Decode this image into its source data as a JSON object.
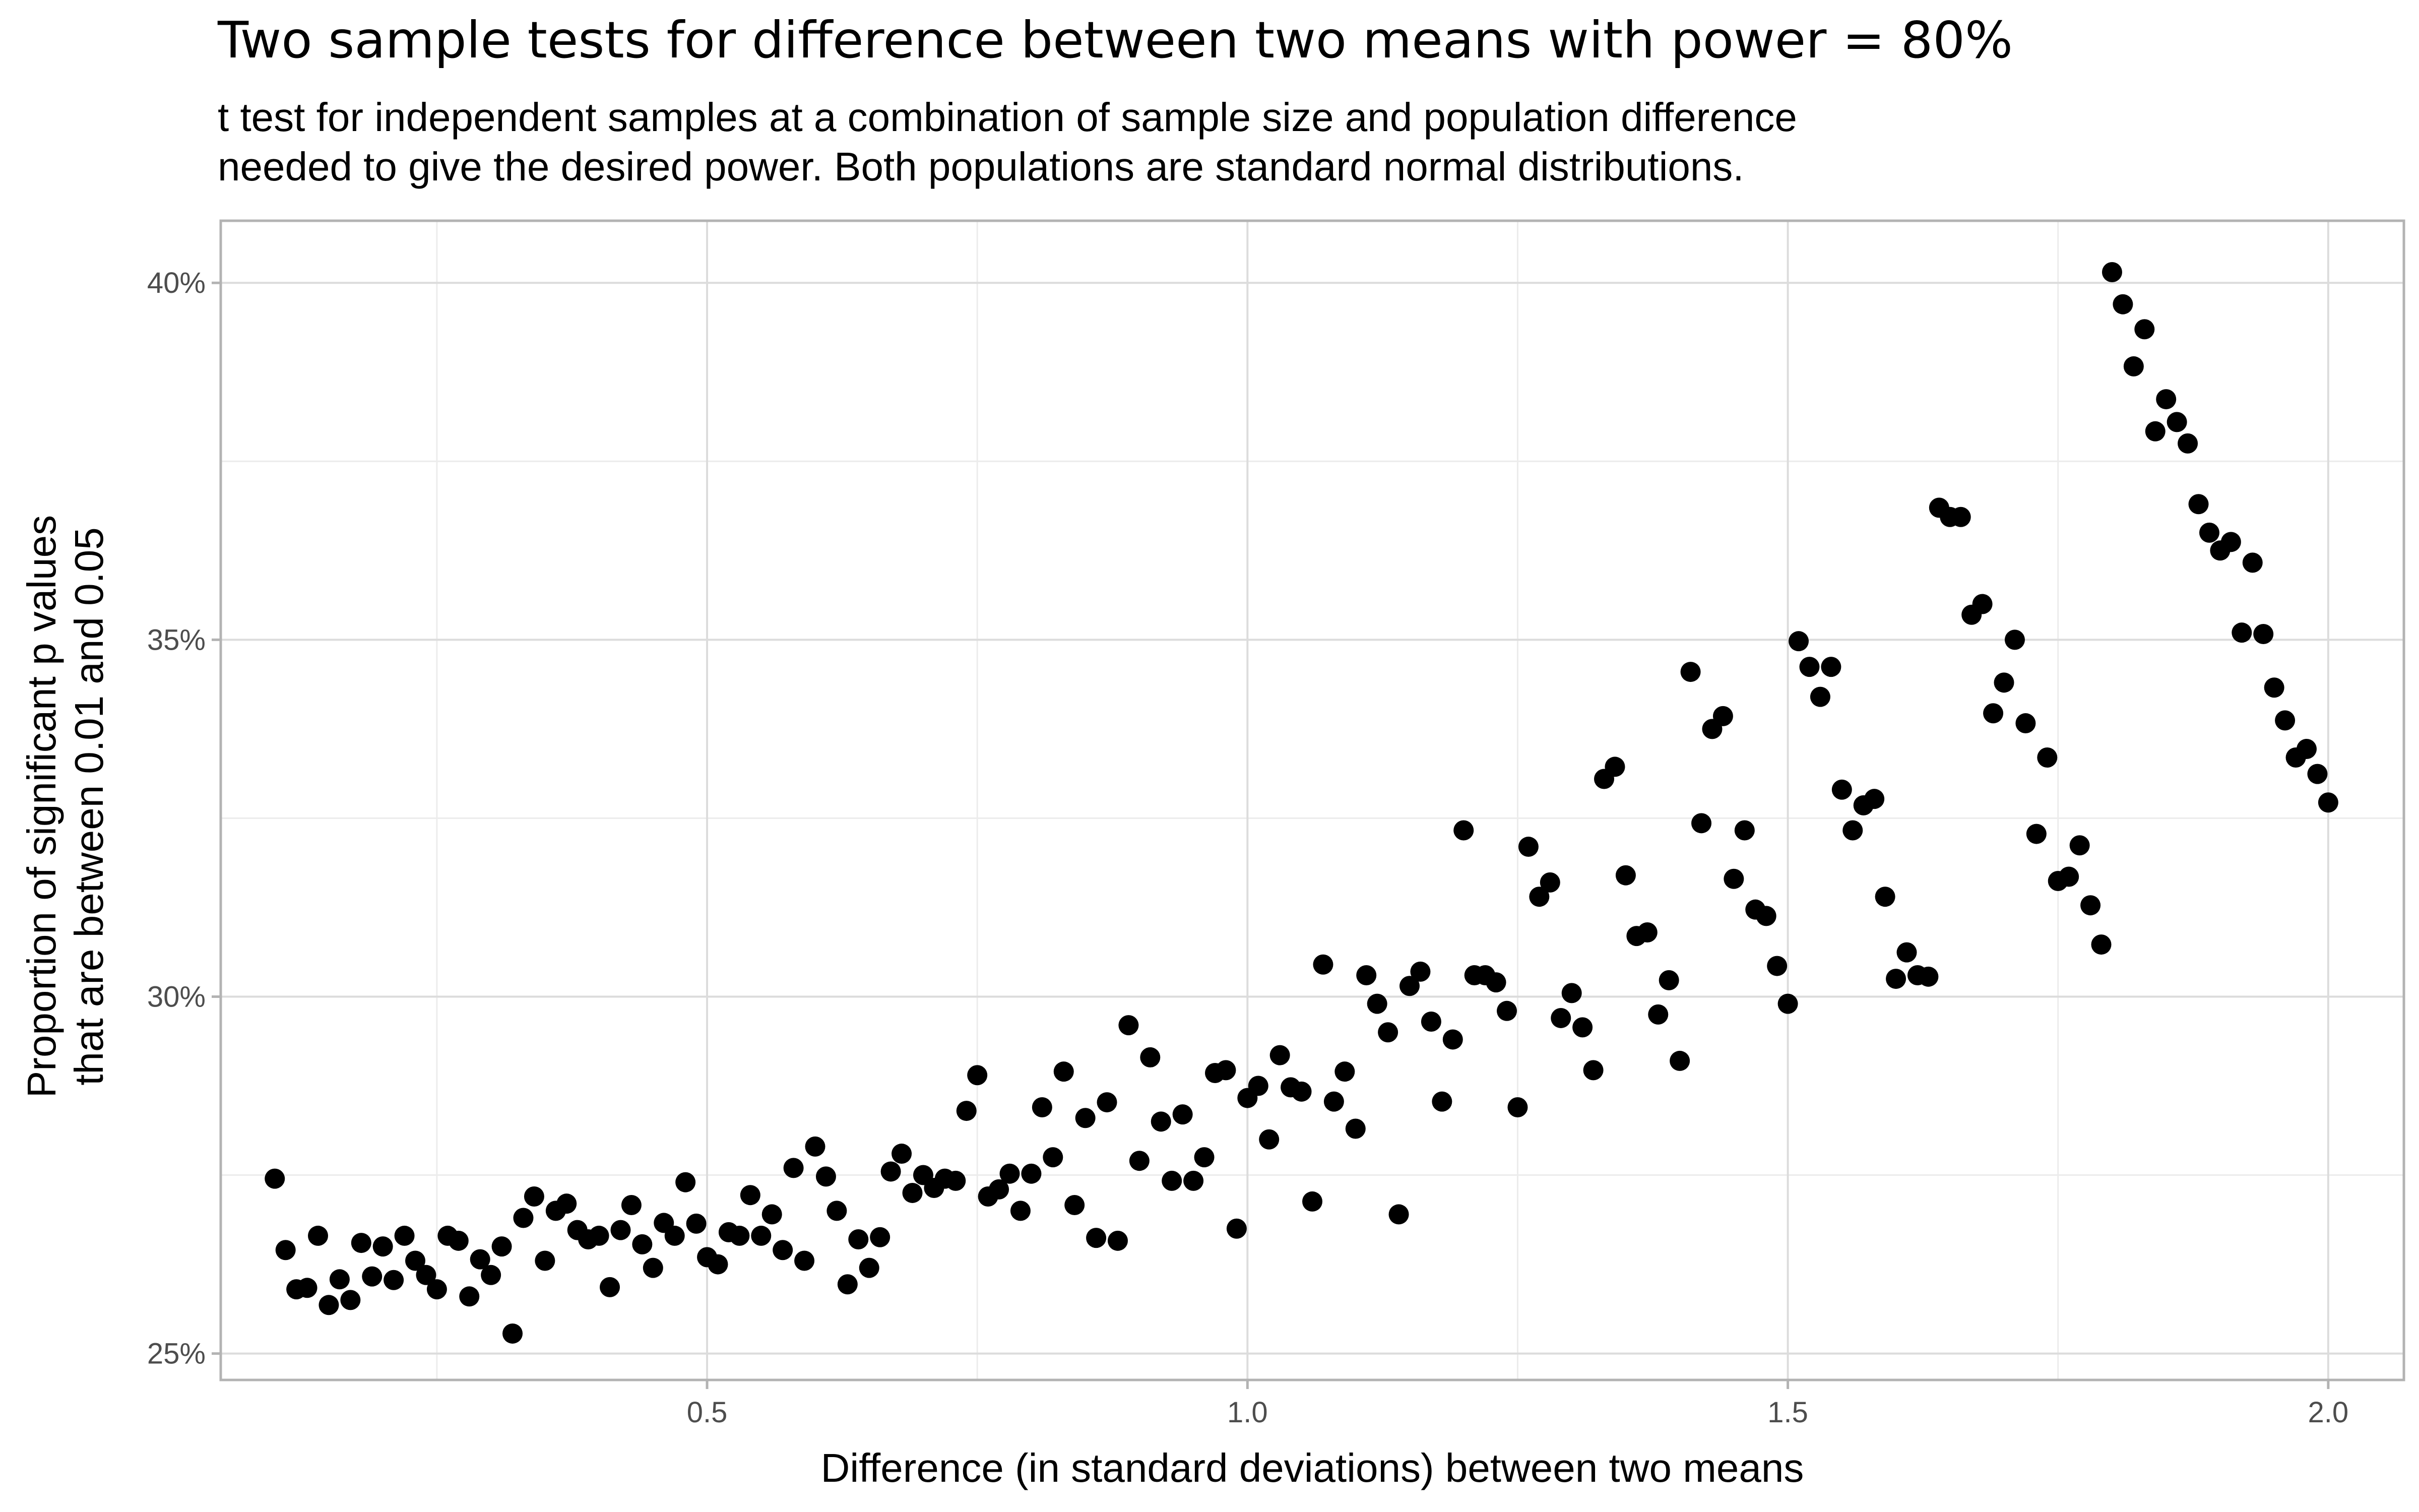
{
  "chart_data": {
    "type": "scatter",
    "title": "Two sample tests for difference between two means with power = 80%",
    "subtitle": [
      "t test for independent samples at a combination of sample size and population difference",
      "needed to give the desired power. Both populations are standard normal distributions."
    ],
    "xlabel": "Difference (in standard deviations) between two means",
    "ylabel": [
      "Proportion of significant p values",
      "that are between 0.01 and 0.05"
    ],
    "xlim": [
      0.05,
      2.07
    ],
    "ylim": [
      0.2463,
      0.4087
    ],
    "x_major_ticks": [
      0.5,
      1.0,
      1.5,
      2.0
    ],
    "x_tick_labels": [
      "0.5",
      "1.0",
      "1.5",
      "2.0"
    ],
    "x_minor_ticks": [
      0.25,
      0.75,
      1.25,
      1.75
    ],
    "y_major_ticks": [
      0.25,
      0.3,
      0.35,
      0.4
    ],
    "y_tick_labels": [
      "25%",
      "30%",
      "35%",
      "40%"
    ],
    "y_minor_ticks": [
      0.275,
      0.325,
      0.375
    ],
    "grid": true,
    "legend": "none",
    "point_color": "#000000",
    "series": [
      {
        "x": [
          0.1,
          0.11,
          0.12,
          0.13,
          0.14,
          0.15,
          0.16,
          0.17,
          0.18,
          0.19,
          0.2,
          0.21,
          0.22,
          0.23,
          0.24,
          0.25,
          0.26,
          0.27,
          0.28,
          0.29,
          0.3,
          0.31,
          0.32,
          0.33,
          0.34,
          0.35,
          0.36,
          0.37,
          0.38,
          0.39,
          0.4,
          0.41,
          0.42,
          0.43,
          0.44,
          0.45,
          0.46,
          0.47,
          0.48,
          0.49,
          0.5,
          0.51,
          0.52,
          0.53,
          0.54,
          0.55,
          0.56,
          0.57,
          0.58,
          0.59,
          0.6,
          0.61,
          0.62,
          0.63,
          0.64,
          0.65,
          0.66,
          0.67,
          0.68,
          0.69,
          0.7,
          0.71,
          0.72,
          0.73,
          0.74,
          0.75,
          0.76,
          0.77,
          0.78,
          0.79,
          0.8,
          0.81,
          0.82,
          0.83,
          0.84,
          0.85,
          0.86,
          0.87,
          0.88,
          0.89,
          0.9,
          0.91,
          0.92,
          0.93,
          0.94,
          0.95,
          0.96,
          0.97,
          0.98,
          0.99,
          1.0,
          1.01,
          1.02,
          1.03,
          1.04,
          1.05,
          1.06,
          1.07,
          1.08,
          1.09,
          1.1,
          1.11,
          1.12,
          1.13,
          1.14,
          1.15,
          1.16,
          1.17,
          1.18,
          1.19,
          1.2,
          1.21,
          1.22,
          1.23,
          1.24,
          1.25,
          1.26,
          1.27,
          1.28,
          1.29,
          1.3,
          1.31,
          1.32,
          1.33,
          1.34,
          1.35,
          1.36,
          1.37,
          1.38,
          1.39,
          1.4,
          1.41,
          1.42,
          1.43,
          1.44,
          1.45,
          1.46,
          1.47,
          1.48,
          1.49,
          1.5,
          1.51,
          1.52,
          1.53,
          1.54,
          1.55,
          1.56,
          1.57,
          1.58,
          1.59,
          1.6,
          1.61,
          1.62,
          1.63,
          1.64,
          1.65,
          1.66,
          1.67,
          1.68,
          1.69,
          1.7,
          1.71,
          1.72,
          1.73,
          1.74,
          1.75,
          1.76,
          1.77,
          1.78,
          1.79,
          1.8,
          1.81,
          1.82,
          1.83,
          1.84,
          1.85,
          1.86,
          1.87,
          1.88,
          1.89,
          1.9,
          1.91,
          1.92,
          1.93,
          1.94,
          1.95,
          1.96,
          1.97,
          1.98,
          1.99,
          2.0
        ],
        "y": [
          0.2745,
          0.2645,
          0.259,
          0.2592,
          0.2665,
          0.2568,
          0.2604,
          0.2575,
          0.2655,
          0.2608,
          0.265,
          0.2603,
          0.2665,
          0.263,
          0.261,
          0.259,
          0.2665,
          0.2658,
          0.258,
          0.2632,
          0.261,
          0.265,
          0.2528,
          0.269,
          0.272,
          0.263,
          0.27,
          0.271,
          0.2673,
          0.266,
          0.2665,
          0.2593,
          0.2673,
          0.2708,
          0.2653,
          0.262,
          0.2683,
          0.2665,
          0.274,
          0.2682,
          0.2635,
          0.2625,
          0.267,
          0.2665,
          0.2722,
          0.2665,
          0.2695,
          0.2645,
          0.276,
          0.263,
          0.279,
          0.2748,
          0.27,
          0.2597,
          0.266,
          0.262,
          0.2663,
          0.2755,
          0.278,
          0.2725,
          0.275,
          0.2732,
          0.2745,
          0.2742,
          0.284,
          0.289,
          0.272,
          0.273,
          0.2752,
          0.27,
          0.2752,
          0.2845,
          0.2775,
          0.2895,
          0.2708,
          0.283,
          0.2662,
          0.2852,
          0.2658,
          0.296,
          0.277,
          0.2915,
          0.2825,
          0.2742,
          0.2835,
          0.2742,
          0.2775,
          0.2893,
          0.2897,
          0.2675,
          0.2858,
          0.2875,
          0.28,
          0.2918,
          0.2873,
          0.2867,
          0.2713,
          0.3045,
          0.2853,
          0.2895,
          0.2815,
          0.303,
          0.299,
          0.295,
          0.2695,
          0.3015,
          0.3035,
          0.2965,
          0.2853,
          0.294,
          0.3233,
          0.303,
          0.303,
          0.302,
          0.298,
          0.2845,
          0.321,
          0.314,
          0.316,
          0.297,
          0.3005,
          0.2957,
          0.2897,
          0.3305,
          0.3322,
          0.317,
          0.3085,
          0.309,
          0.2975,
          0.3023,
          0.291,
          0.3455,
          0.3243,
          0.3375,
          0.3393,
          0.3165,
          0.3233,
          0.3122,
          0.3113,
          0.3043,
          0.299,
          0.3498,
          0.3462,
          0.342,
          0.3462,
          0.329,
          0.3233,
          0.3268,
          0.3277,
          0.314,
          0.3025,
          0.3062,
          0.303,
          0.3028,
          0.3685,
          0.3672,
          0.3672,
          0.3535,
          0.355,
          0.3397,
          0.344,
          0.35,
          0.3383,
          0.3228,
          0.3335,
          0.3162,
          0.3168,
          0.3212,
          0.3128,
          0.3073,
          0.4015,
          0.397,
          0.3883,
          0.3935,
          0.3792,
          0.3837,
          0.3805,
          0.3775,
          0.369,
          0.365,
          0.3625,
          0.3637,
          0.351,
          0.3608,
          0.3508,
          0.3433,
          0.3387,
          0.3335,
          0.3347,
          0.3312,
          0.3272
        ]
      }
    ]
  }
}
